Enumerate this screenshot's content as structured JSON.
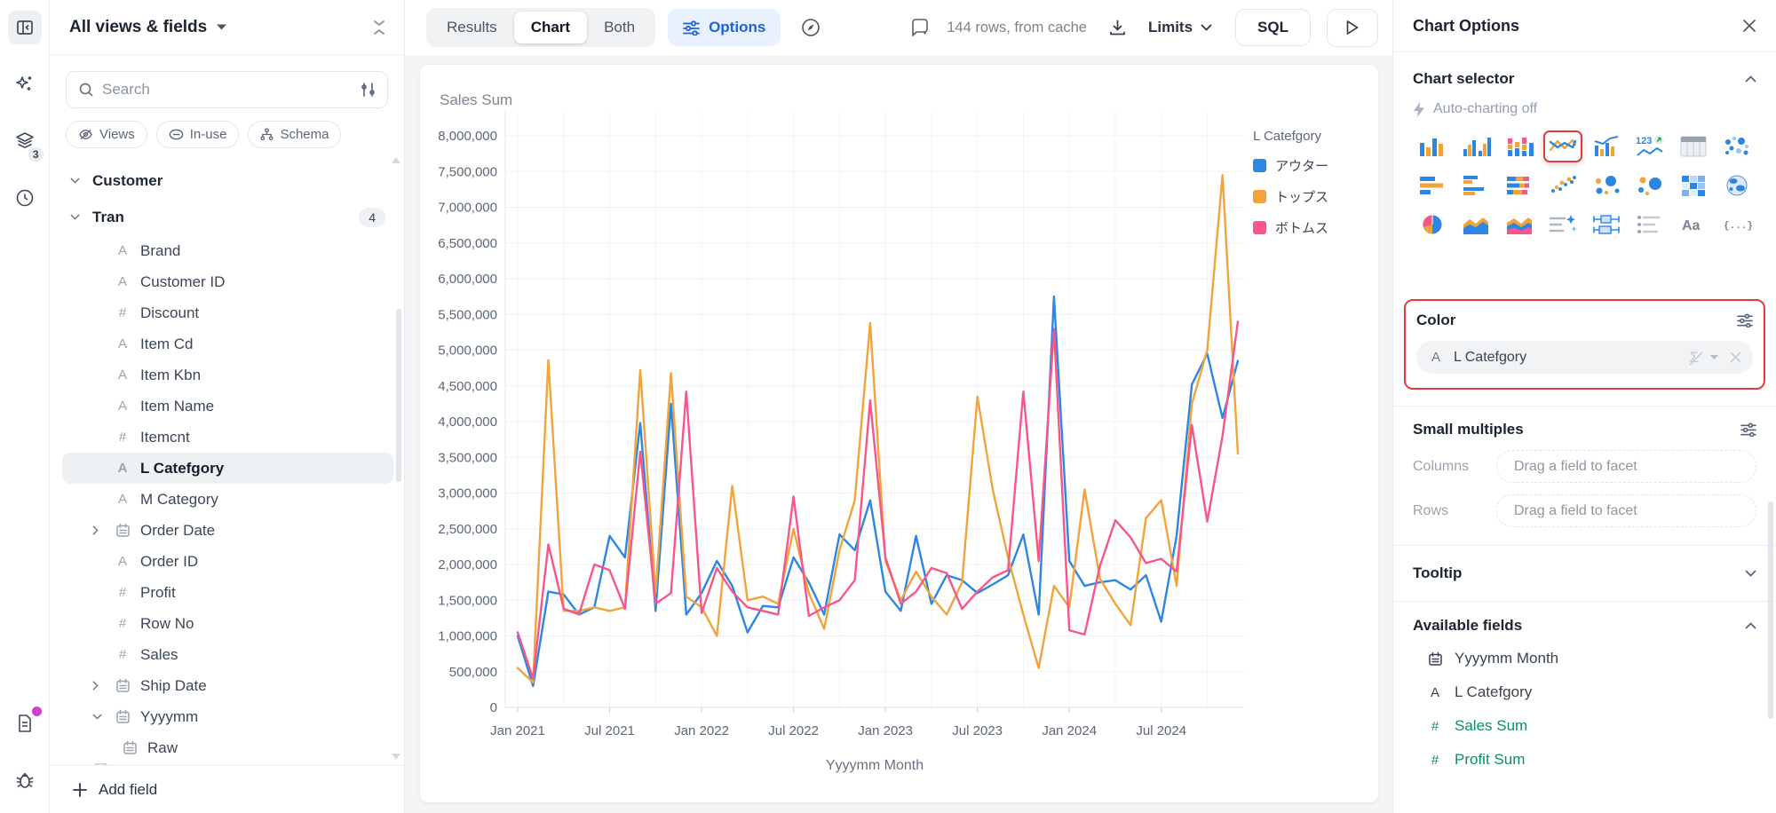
{
  "rail": {
    "layers_badge": "3",
    "icons": [
      "collapse-sidebar",
      "ai-sparkles",
      "layers",
      "history-clock",
      "changelog-file",
      "debug-bug"
    ]
  },
  "sidebar": {
    "title": "All views & fields",
    "search_placeholder": "Search",
    "filter_chips": [
      {
        "label": "Views",
        "icon": "eye-off-icon"
      },
      {
        "label": "In-use",
        "icon": "link-icon"
      },
      {
        "label": "Schema",
        "icon": "schema-icon"
      }
    ],
    "items": [
      {
        "label": "Customer",
        "kind": "group",
        "chevron": "down"
      },
      {
        "label": "Tran",
        "kind": "group",
        "chevron": "down",
        "badge": "4"
      },
      {
        "label": "Brand",
        "type": "text"
      },
      {
        "label": "Customer ID",
        "type": "text"
      },
      {
        "label": "Discount",
        "type": "number"
      },
      {
        "label": "Item Cd",
        "type": "text"
      },
      {
        "label": "Item Kbn",
        "type": "text"
      },
      {
        "label": "Item Name",
        "type": "text"
      },
      {
        "label": "Itemcnt",
        "type": "number"
      },
      {
        "label": "L Catefgory",
        "type": "text",
        "selected": true
      },
      {
        "label": "M Category",
        "type": "text"
      },
      {
        "label": "Order Date",
        "type": "date",
        "chevron": "right"
      },
      {
        "label": "Order ID",
        "type": "text"
      },
      {
        "label": "Profit",
        "type": "number"
      },
      {
        "label": "Row No",
        "type": "number"
      },
      {
        "label": "Sales",
        "type": "number"
      },
      {
        "label": "Ship Date",
        "type": "date",
        "chevron": "right"
      },
      {
        "label": "Yyyymm",
        "type": "date",
        "chevron": "down"
      },
      {
        "label": "Raw",
        "type": "date",
        "indent": 2
      },
      {
        "label": "",
        "type": "date",
        "clipped": true
      }
    ],
    "add_field_label": "Add field"
  },
  "topbar": {
    "view_tabs": [
      {
        "label": "Results",
        "active": false
      },
      {
        "label": "Chart",
        "active": true
      },
      {
        "label": "Both",
        "active": false
      }
    ],
    "options_label": "Options",
    "row_status": "144 rows, from cache",
    "limits_label": "Limits",
    "sql_label": "SQL"
  },
  "chart": {
    "title": "Sales Sum"
  },
  "chart_data": {
    "type": "line",
    "title": "Sales Sum",
    "xlabel": "Yyyymm Month",
    "ylabel": "",
    "ylim": [
      0,
      8000000
    ],
    "y_tick_step": 500000,
    "grid": true,
    "legend_position": "right",
    "legend_title": "L Catefgory",
    "x_tick_labels": [
      "Jan 2021",
      "Jul 2021",
      "Jan 2022",
      "Jul 2022",
      "Jan 2023",
      "Jul 2023",
      "Jan 2024",
      "Jul 2024"
    ],
    "x": [
      "2021-01",
      "2021-02",
      "2021-03",
      "2021-04",
      "2021-05",
      "2021-06",
      "2021-07",
      "2021-08",
      "2021-09",
      "2021-10",
      "2021-11",
      "2021-12",
      "2022-01",
      "2022-02",
      "2022-03",
      "2022-04",
      "2022-05",
      "2022-06",
      "2022-07",
      "2022-08",
      "2022-09",
      "2022-10",
      "2022-11",
      "2022-12",
      "2023-01",
      "2023-02",
      "2023-03",
      "2023-04",
      "2023-05",
      "2023-06",
      "2023-07",
      "2023-08",
      "2023-09",
      "2023-10",
      "2023-11",
      "2023-12",
      "2024-01",
      "2024-02",
      "2024-03",
      "2024-04",
      "2024-05",
      "2024-06",
      "2024-07",
      "2024-08",
      "2024-09",
      "2024-10",
      "2024-11",
      "2024-12"
    ],
    "series": [
      {
        "name": "アウター",
        "color": "#2d87e2",
        "values": [
          1000000,
          300000,
          1620000,
          1580000,
          1300000,
          1400000,
          2400000,
          2100000,
          3980000,
          1350000,
          4250000,
          1300000,
          1600000,
          2050000,
          1700000,
          1050000,
          1420000,
          1400000,
          2100000,
          1750000,
          1300000,
          2420000,
          2200000,
          2900000,
          1620000,
          1350000,
          2400000,
          1450000,
          1850000,
          1780000,
          1600000,
          1720000,
          1850000,
          2420000,
          1300000,
          5750000,
          2050000,
          1700000,
          1750000,
          1780000,
          1650000,
          1850000,
          1200000,
          2400000,
          4520000,
          4950000,
          4050000,
          4850000
        ]
      },
      {
        "name": "トップス",
        "color": "#f1a33c",
        "values": [
          550000,
          350000,
          4860000,
          1350000,
          1350000,
          1400000,
          1350000,
          1400000,
          4720000,
          1600000,
          4680000,
          1550000,
          1400000,
          1000000,
          3100000,
          1500000,
          1550000,
          1450000,
          2500000,
          1600000,
          1100000,
          2200000,
          2900000,
          5380000,
          2050000,
          1500000,
          1900000,
          1550000,
          1300000,
          1750000,
          4350000,
          3050000,
          2100000,
          1300000,
          550000,
          1700000,
          1400000,
          3050000,
          1800000,
          1450000,
          1150000,
          2650000,
          2900000,
          1700000,
          4250000,
          5000000,
          7450000,
          3550000
        ]
      },
      {
        "name": "ボトムス",
        "color": "#f9558b",
        "values": [
          1050000,
          400000,
          2280000,
          1380000,
          1300000,
          2000000,
          1920000,
          1380000,
          3580000,
          1450000,
          1600000,
          4420000,
          1320000,
          1950000,
          1620000,
          1400000,
          1350000,
          1300000,
          2950000,
          1280000,
          1400000,
          1500000,
          1780000,
          4300000,
          2100000,
          1450000,
          1620000,
          1950000,
          1880000,
          1380000,
          1620000,
          1820000,
          1920000,
          4420000,
          2050000,
          5300000,
          1080000,
          1020000,
          1980000,
          2620000,
          2380000,
          2020000,
          2080000,
          1900000,
          3950000,
          2600000,
          3800000,
          5400000
        ]
      }
    ]
  },
  "right_panel": {
    "title": "Chart Options",
    "chart_selector": {
      "label": "Chart selector",
      "auto_charting": "Auto-charting off",
      "selected_type": "line-chart",
      "icons": [
        "column-chart",
        "grouped-column-chart",
        "stacked-column-chart",
        "line-chart",
        "combo-chart",
        "kpi-number",
        "table",
        "point-map",
        "bar-chart",
        "grouped-bar-chart",
        "stacked-bar-chart",
        "scatter-plot",
        "bubble-chart",
        "packed-bubble",
        "heatmap",
        "map-globe",
        "pie-chart",
        "area-chart",
        "stacked-area-chart",
        "ai-summary",
        "boxplot",
        "list-view",
        "text-view",
        "json-view"
      ]
    },
    "color_section": {
      "label": "Color",
      "pill_field": "L Catefgory",
      "pill_type": "text"
    },
    "small_multiples": {
      "label": "Small multiples",
      "columns_label": "Columns",
      "rows_label": "Rows",
      "placeholder": "Drag a field to facet"
    },
    "tooltip": {
      "label": "Tooltip"
    },
    "available_fields": {
      "label": "Available fields",
      "items": [
        {
          "label": "Yyyymm Month",
          "type": "date",
          "measure": false
        },
        {
          "label": "L Catefgory",
          "type": "text",
          "measure": false
        },
        {
          "label": "Sales Sum",
          "type": "number",
          "measure": true
        },
        {
          "label": "Profit Sum",
          "type": "number",
          "measure": true
        }
      ]
    }
  },
  "colors": {
    "accent_blue": "#1d63d8",
    "series_blue": "#2d87e2",
    "series_orange": "#f1a33c",
    "series_pink": "#f9558b",
    "annotation_red": "#e23c3c",
    "measure_green": "#0d8f63"
  }
}
